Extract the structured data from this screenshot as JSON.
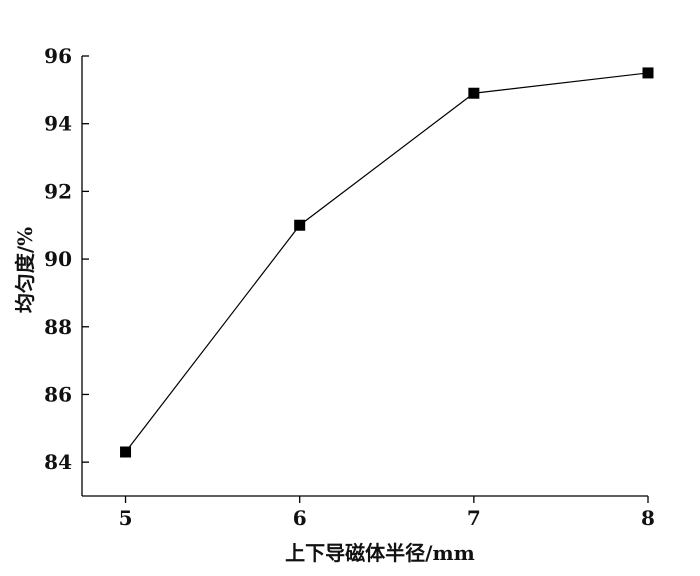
{
  "chart_data": {
    "type": "line",
    "title": "",
    "xlabel": "上下导磁体半径/mm",
    "ylabel": "均匀度/%",
    "x": [
      5,
      6,
      7,
      8
    ],
    "series": [
      {
        "values": [
          84.3,
          91.0,
          94.9,
          95.5
        ]
      }
    ],
    "xlim": [
      4.75,
      8.0
    ],
    "ylim": [
      83,
      96
    ],
    "xticks": [
      "5",
      "6",
      "7",
      "8"
    ],
    "yticks": [
      "84",
      "86",
      "88",
      "90",
      "92",
      "94",
      "96"
    ],
    "marker": "square",
    "grid": false,
    "colors": {
      "line": "#000000",
      "marker": "#000000",
      "axis": "#000000"
    }
  }
}
